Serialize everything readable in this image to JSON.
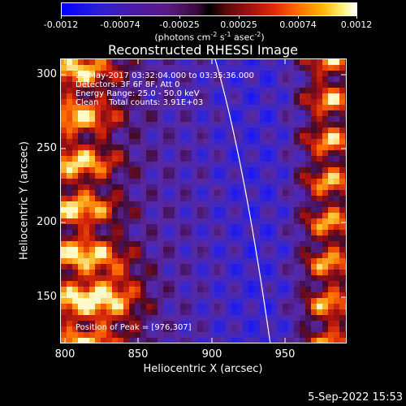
{
  "colorbar": {
    "tick_labels": [
      "-0.0012",
      "-0.00074",
      "-0.00025",
      "0.00025",
      "0.00074",
      "0.0012"
    ],
    "unit_parts": [
      "(photons cm",
      "-2",
      " s",
      "-1",
      " asec",
      "-2",
      ")"
    ]
  },
  "plot": {
    "title": "Reconstructed RHESSI Image",
    "info_lines": [
      "29-May-2017 03:32:04.000 to 03:35:36.000",
      "Detectors: 3F 6F 8F, Att 0",
      "Energy Range: 25.0 - 50.0 keV",
      "Clean    Total counts: 3.91E+03"
    ],
    "peak_text": "Position of Peak = [976,307]",
    "xlabel": "Heliocentric X (arcsec)",
    "ylabel": "Heliocentric Y (arcsec)",
    "x_ticks": [
      "800",
      "850",
      "900",
      "950"
    ],
    "y_ticks": [
      "300",
      "250",
      "200",
      "150"
    ]
  },
  "timestamp": "5-Sep-2022 15:53"
}
